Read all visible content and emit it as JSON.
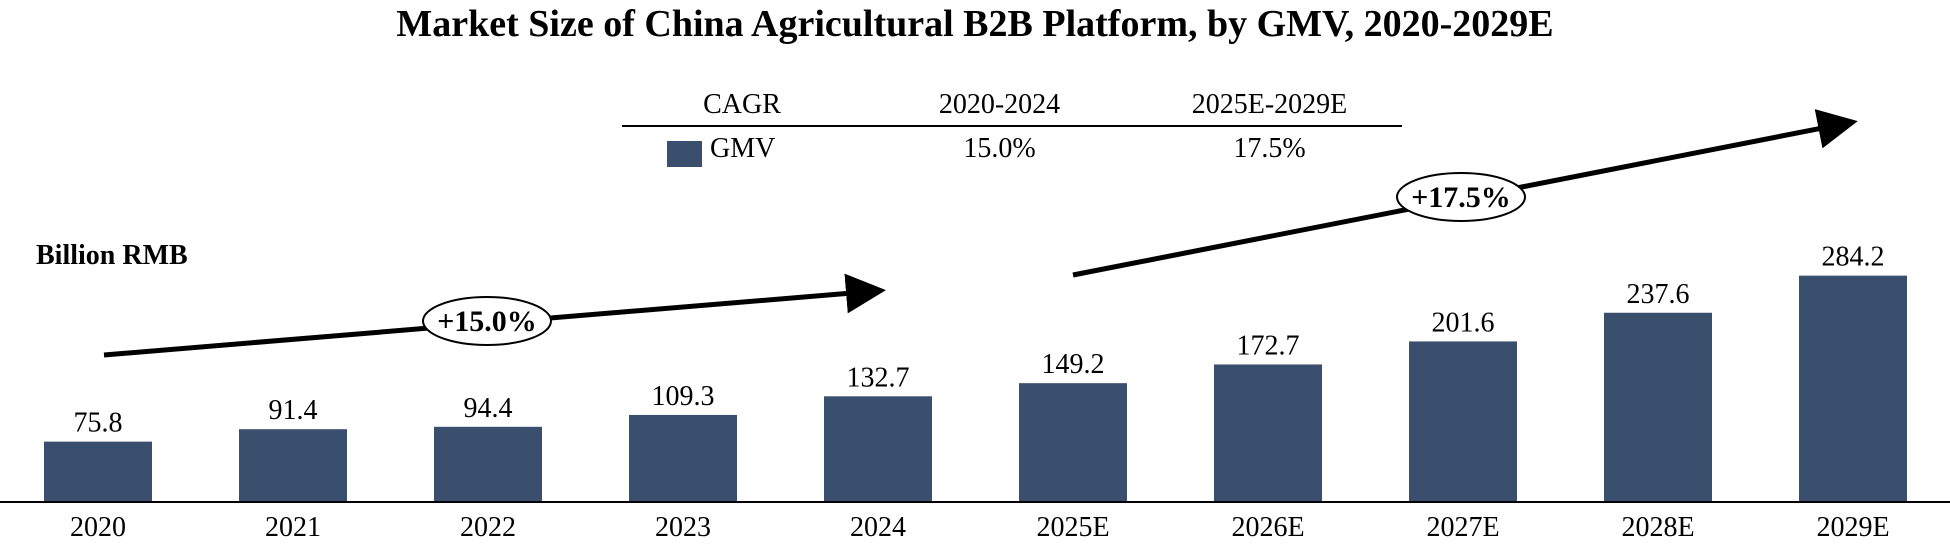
{
  "chart_data": {
    "type": "bar",
    "title": "Market Size of China Agricultural B2B Platform, by GMV, 2020-2029E",
    "unit_label": "Billion RMB",
    "categories": [
      "2020",
      "2021",
      "2022",
      "2023",
      "2024",
      "2025E",
      "2026E",
      "2027E",
      "2028E",
      "2029E"
    ],
    "series": [
      {
        "name": "GMV",
        "values": [
          75.8,
          91.4,
          94.4,
          109.3,
          132.7,
          149.2,
          172.7,
          201.6,
          237.6,
          284.2
        ]
      }
    ],
    "value_labels": [
      "75.8",
      "91.4",
      "94.4",
      "109.3",
      "132.7",
      "149.2",
      "172.7",
      "201.6",
      "237.6",
      "284.2"
    ],
    "ylim": [
      0,
      300
    ],
    "grid": false,
    "legend": "top-center",
    "cagr_table": {
      "header": [
        "CAGR",
        "2020-2024",
        "2025E-2029E"
      ],
      "rows": [
        {
          "series": "GMV",
          "values": [
            "15.0%",
            "17.5%"
          ]
        }
      ]
    },
    "annotations": [
      "+15.0%",
      "+17.5%"
    ],
    "colors": {
      "bar": "#3a4f6e",
      "axis": "#000000"
    }
  }
}
